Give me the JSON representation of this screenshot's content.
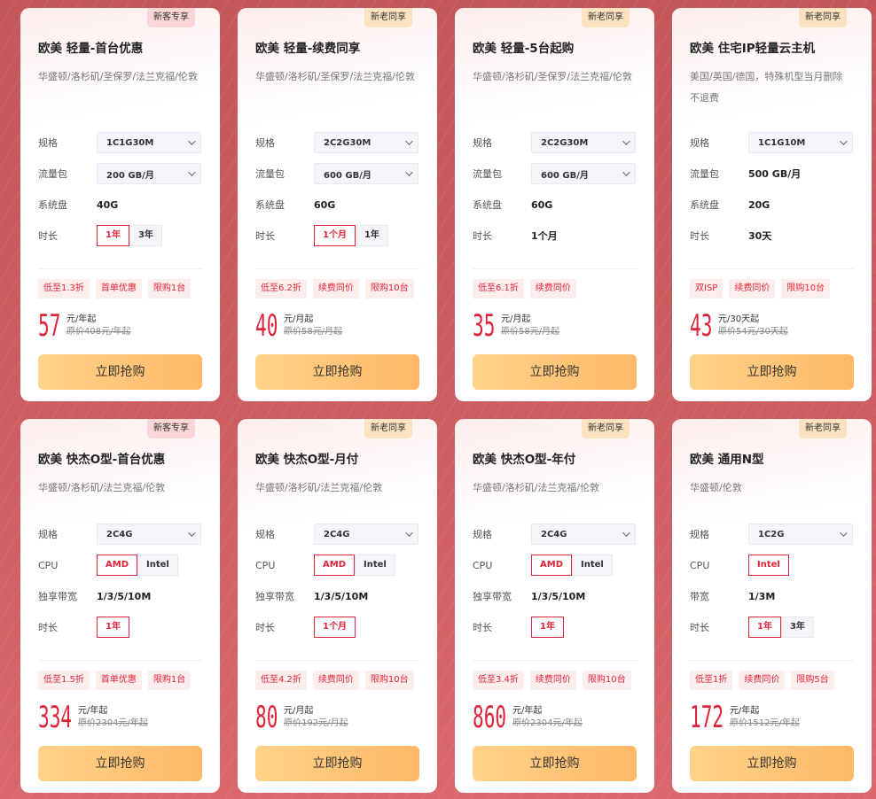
{
  "buy_label": "立即抢购",
  "colors": {
    "accent": "#e0253a",
    "button": "#ffc577",
    "background": "#c95a5d"
  },
  "cards": [
    {
      "badge": "新客专享",
      "badge_type": "new",
      "title": "欧美 轻量-首台优惠",
      "subtitle": "华盛顿/洛杉矶/圣保罗/法兰克福/伦敦",
      "specs": [
        {
          "label": "规格",
          "type": "select",
          "value": "1C1G30M"
        },
        {
          "label": "流量包",
          "type": "select",
          "value": "200 GB/月"
        },
        {
          "label": "系统盘",
          "type": "text",
          "value": "40G"
        },
        {
          "label": "时长",
          "type": "options",
          "options": [
            "1年",
            "3年"
          ],
          "selected": 0
        }
      ],
      "tags": [
        "低至1.3折",
        "首单优惠",
        "限购1台"
      ],
      "price": "57",
      "unit": "元/年起",
      "original": "原价408元/年起"
    },
    {
      "badge": "新老同享",
      "badge_type": "old",
      "title": "欧美 轻量-续费同享",
      "subtitle": "华盛顿/洛杉矶/圣保罗/法兰克福/伦敦",
      "specs": [
        {
          "label": "规格",
          "type": "select",
          "value": "2C2G30M"
        },
        {
          "label": "流量包",
          "type": "select",
          "value": "600 GB/月"
        },
        {
          "label": "系统盘",
          "type": "text",
          "value": "60G"
        },
        {
          "label": "时长",
          "type": "options",
          "options": [
            "1个月",
            "1年"
          ],
          "selected": 0
        }
      ],
      "tags": [
        "低至6.2折",
        "续费同价",
        "限购10台"
      ],
      "price": "40",
      "unit": "元/月起",
      "original": "原价58元/月起"
    },
    {
      "badge": "新老同享",
      "badge_type": "old",
      "title": "欧美 轻量-5台起购",
      "subtitle": "华盛顿/洛杉矶/圣保罗/法兰克福/伦敦",
      "specs": [
        {
          "label": "规格",
          "type": "select",
          "value": "2C2G30M"
        },
        {
          "label": "流量包",
          "type": "select",
          "value": "600 GB/月"
        },
        {
          "label": "系统盘",
          "type": "text",
          "value": "60G"
        },
        {
          "label": "时长",
          "type": "text",
          "value": "1个月"
        }
      ],
      "tags": [
        "低至6.1折",
        "续费同价"
      ],
      "price": "35",
      "unit": "元/月起",
      "original": "原价58元/月起"
    },
    {
      "badge": "新老同享",
      "badge_type": "old",
      "title": "欧美 住宅IP轻量云主机",
      "subtitle": "美国/英国/德国，特殊机型当月删除不退费",
      "specs": [
        {
          "label": "规格",
          "type": "select",
          "value": "1C1G10M"
        },
        {
          "label": "流量包",
          "type": "text",
          "value": "500 GB/月"
        },
        {
          "label": "系统盘",
          "type": "text",
          "value": "20G"
        },
        {
          "label": "时长",
          "type": "text",
          "value": "30天"
        }
      ],
      "tags": [
        "双ISP",
        "续费同价",
        "限购10台"
      ],
      "price": "43",
      "unit": "元/30天起",
      "original": "原价54元/30天起"
    },
    {
      "badge": "新客专享",
      "badge_type": "new",
      "title": "欧美 快杰O型-首台优惠",
      "subtitle": "华盛顿/洛杉矶/法兰克福/伦敦",
      "specs": [
        {
          "label": "规格",
          "type": "select",
          "value": "2C4G"
        },
        {
          "label": "CPU",
          "type": "options",
          "options": [
            "AMD",
            "Intel"
          ],
          "selected": 0
        },
        {
          "label": "独享带宽",
          "type": "text",
          "value": "1/3/5/10M"
        },
        {
          "label": "时长",
          "type": "options",
          "options": [
            "1年"
          ],
          "selected": 0
        }
      ],
      "tags": [
        "低至1.5折",
        "首单优惠",
        "限购1台"
      ],
      "price": "334",
      "unit": "元/年起",
      "original": "原价2304元/年起"
    },
    {
      "badge": "新老同享",
      "badge_type": "old",
      "title": "欧美 快杰O型-月付",
      "subtitle": "华盛顿/洛杉矶/法兰克福/伦敦",
      "specs": [
        {
          "label": "规格",
          "type": "select",
          "value": "2C4G"
        },
        {
          "label": "CPU",
          "type": "options",
          "options": [
            "AMD",
            "Intel"
          ],
          "selected": 0
        },
        {
          "label": "独享带宽",
          "type": "text",
          "value": "1/3/5/10M"
        },
        {
          "label": "时长",
          "type": "options",
          "options": [
            "1个月"
          ],
          "selected": 0
        }
      ],
      "tags": [
        "低至4.2折",
        "续费同价",
        "限购10台"
      ],
      "price": "80",
      "unit": "元/月起",
      "original": "原价192元/月起"
    },
    {
      "badge": "新老同享",
      "badge_type": "old",
      "title": "欧美 快杰O型-年付",
      "subtitle": "华盛顿/洛杉矶/法兰克福/伦敦",
      "specs": [
        {
          "label": "规格",
          "type": "select",
          "value": "2C4G"
        },
        {
          "label": "CPU",
          "type": "options",
          "options": [
            "AMD",
            "Intel"
          ],
          "selected": 0
        },
        {
          "label": "独享带宽",
          "type": "text",
          "value": "1/3/5/10M"
        },
        {
          "label": "时长",
          "type": "options",
          "options": [
            "1年"
          ],
          "selected": 0
        }
      ],
      "tags": [
        "低至3.4折",
        "续费同价",
        "限购10台"
      ],
      "price": "860",
      "unit": "元/年起",
      "original": "原价2304元/年起"
    },
    {
      "badge": "新老同享",
      "badge_type": "old",
      "title": "欧美 通用N型",
      "subtitle": "华盛顿/伦敦",
      "specs": [
        {
          "label": "规格",
          "type": "select",
          "value": "1C2G"
        },
        {
          "label": "CPU",
          "type": "options",
          "options": [
            "Intel"
          ],
          "selected": 0
        },
        {
          "label": "带宽",
          "type": "text",
          "value": "1/3M"
        },
        {
          "label": "时长",
          "type": "options",
          "options": [
            "1年",
            "3年"
          ],
          "selected": 0
        }
      ],
      "tags": [
        "低至1折",
        "续费同价",
        "限购5台"
      ],
      "price": "172",
      "unit": "元/年起",
      "original": "原价1512元/年起"
    }
  ]
}
